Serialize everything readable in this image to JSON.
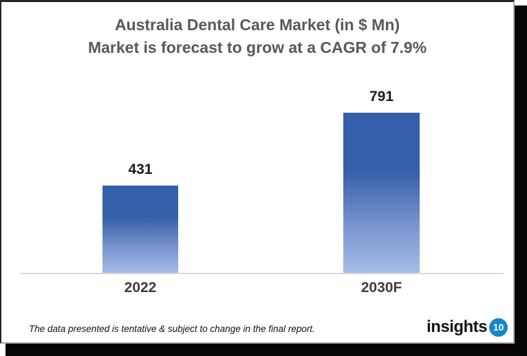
{
  "chart_data": {
    "type": "bar",
    "title": "Australia Dental Care Market (in $ Mn)",
    "subtitle": "Market is forecast to grow at a CAGR of 7.9%",
    "categories": [
      "2022",
      "2030F"
    ],
    "values": [
      431,
      791
    ],
    "xlabel": "",
    "ylabel": "",
    "ylim": [
      0,
      850
    ],
    "grid": false,
    "legend": false,
    "bar_gradient": {
      "top": "#355FA8",
      "mid": "#7590CB",
      "bottom": "#A6BCE8"
    },
    "axis_line_color": "#D9D9D9",
    "title_color": "#595959"
  },
  "footer": {
    "disclaimer": "The data presented is tentative & subject to change in the final report.",
    "logo_text": "insights",
    "logo_badge": "10",
    "logo_badge_color": "#1587C9"
  }
}
